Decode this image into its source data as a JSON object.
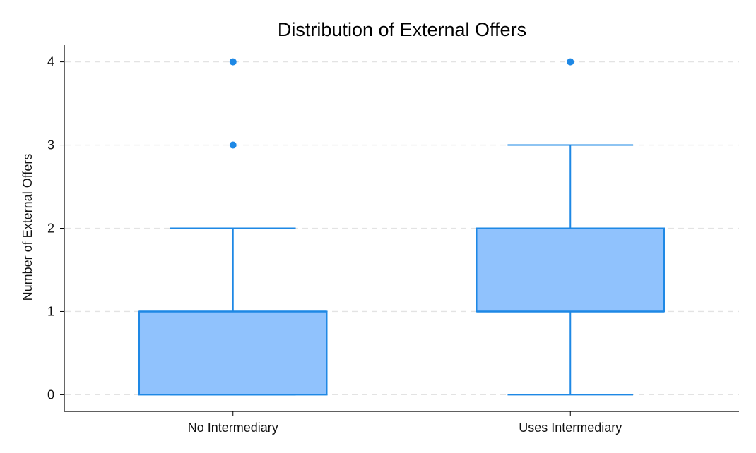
{
  "chart_data": {
    "type": "box",
    "title": "Distribution of External Offers",
    "xlabel": "",
    "ylabel": "Number of External Offers",
    "ylim": [
      -0.2,
      4.2
    ],
    "yticks": [
      0,
      1,
      2,
      3,
      4
    ],
    "grid": "horizontal-dashed",
    "categories": [
      "No Intermediary",
      "Uses Intermediary"
    ],
    "boxes": [
      {
        "category": "No Intermediary",
        "whisker_low": 0,
        "q1": 0,
        "median": 1,
        "q3": 1,
        "whisker_high": 2,
        "outliers": [
          3,
          4
        ]
      },
      {
        "category": "Uses Intermediary",
        "whisker_low": 0,
        "q1": 1,
        "median": 1,
        "q3": 2,
        "whisker_high": 3,
        "outliers": [
          4
        ]
      }
    ],
    "colors": {
      "box_fill": "#90c2fd",
      "box_edge": "#1e88e5",
      "outlier": "#1e88e5",
      "grid": "#e3e3e3",
      "axis": "#000000"
    }
  }
}
